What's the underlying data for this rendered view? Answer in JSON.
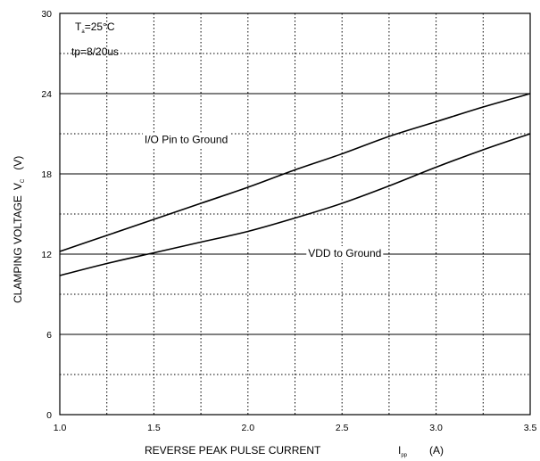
{
  "chart_data": {
    "type": "line",
    "xlabel": "REVERSE PEAK PULSE CURRENT",
    "xlabel_symbol": "I",
    "xlabel_subscript": "pp",
    "xlabel_unit": "(A)",
    "ylabel": "CLAMPING VOLTAGE",
    "ylabel_symbol": "V",
    "ylabel_subscript": "C",
    "ylabel_unit": "(V)",
    "xlim": [
      1.0,
      3.5
    ],
    "ylim": [
      0,
      30
    ],
    "x_ticks": [
      "1.0",
      "1.5",
      "2.0",
      "2.5",
      "3.0",
      "3.5"
    ],
    "y_ticks": [
      "0",
      "6",
      "12",
      "18",
      "24",
      "30"
    ],
    "grid": true,
    "conditions": {
      "temp_prefix": "T",
      "temp_subscript": "a",
      "temp_value": "=25°C",
      "pulse": "tp=8/20us"
    },
    "series": [
      {
        "name": "I/O Pin to Ground",
        "x": [
          1.0,
          1.25,
          1.5,
          1.75,
          2.0,
          2.25,
          2.5,
          2.75,
          3.0,
          3.25,
          3.5
        ],
        "y": [
          12.2,
          13.4,
          14.6,
          15.8,
          17.0,
          18.3,
          19.5,
          20.8,
          21.9,
          23.0,
          24.0
        ],
        "label_x": 1.45,
        "label_y": 20.3
      },
      {
        "name": "VDD to Ground",
        "x": [
          1.0,
          1.25,
          1.5,
          1.75,
          2.0,
          2.25,
          2.5,
          2.75,
          3.0,
          3.25,
          3.5
        ],
        "y": [
          10.4,
          11.3,
          12.1,
          12.9,
          13.7,
          14.7,
          15.8,
          17.1,
          18.5,
          19.8,
          21.0
        ],
        "label_x": 2.32,
        "label_y": 11.8
      }
    ]
  }
}
